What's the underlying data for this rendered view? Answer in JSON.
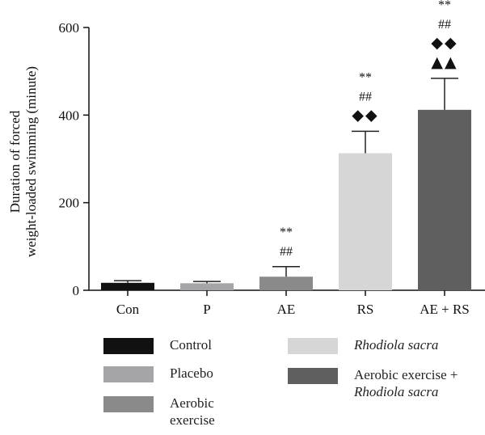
{
  "chart_data": {
    "type": "bar",
    "categories": [
      "Con",
      "P",
      "AE",
      "RS",
      "AE + RS"
    ],
    "values": [
      17,
      16,
      31,
      313,
      412
    ],
    "errors": [
      5,
      4,
      23,
      50,
      72
    ],
    "ylabel_line1": "Duration of forced",
    "ylabel_line2": "weight-loaded swimming (minute)",
    "ylim": [
      0,
      600
    ],
    "yticks": [
      "0",
      "200",
      "400",
      "600"
    ],
    "ytick_values": [
      0,
      200,
      400,
      600
    ],
    "bar_colors": [
      "#111111",
      "#a5a5a7",
      "#8a8a8a",
      "#d6d6d6",
      "#5f5f5f"
    ],
    "annotations": [
      [],
      [],
      [
        "##",
        "**"
      ],
      [
        "◆◆",
        "##",
        "**"
      ],
      [
        "▲▲",
        "◆◆",
        "##",
        "**"
      ]
    ]
  },
  "legend": [
    {
      "label": "Control",
      "label2": "",
      "color": "#111111",
      "italic": false
    },
    {
      "label": "Placebo",
      "label2": "",
      "color": "#a5a5a7",
      "italic": false
    },
    {
      "label": "Aerobic",
      "label2": "exercise",
      "color": "#8a8a8a",
      "italic": false
    },
    {
      "label": "Rhodiola sacra",
      "label2": "",
      "color": "#d6d6d6",
      "italic": true
    },
    {
      "label": "Aerobic exercise +",
      "label2": "Rhodiola sacra",
      "color": "#5f5f5f",
      "italic": false
    }
  ]
}
